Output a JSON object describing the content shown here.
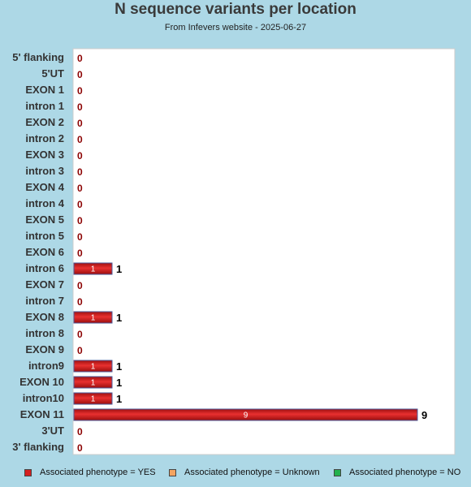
{
  "title": "N sequence variants per location",
  "subtitle": "From Infevers website - 2025-06-27",
  "chart_data": {
    "type": "bar",
    "orientation": "horizontal",
    "categories": [
      "5' flanking",
      "5'UT",
      "EXON 1",
      "intron 1",
      "EXON 2",
      "intron 2",
      "EXON 3",
      "intron 3",
      "EXON 4",
      "intron 4",
      "EXON 5",
      "intron 5",
      "EXON 6",
      "intron 6",
      "EXON 7",
      "intron 7",
      "EXON 8",
      "intron 8",
      "EXON 9",
      "intron9",
      "EXON 10",
      "intron10",
      "EXON 11",
      "3'UT",
      "3' flanking"
    ],
    "series": [
      {
        "name": "Associated phenotype = YES",
        "color": "#d42020",
        "values": [
          0,
          0,
          0,
          0,
          0,
          0,
          0,
          0,
          0,
          0,
          0,
          0,
          0,
          1,
          0,
          0,
          1,
          0,
          0,
          1,
          1,
          1,
          9,
          0,
          0
        ]
      },
      {
        "name": "Associated phenotype = Unknown",
        "color": "#f4a460",
        "values": [
          0,
          0,
          0,
          0,
          0,
          0,
          0,
          0,
          0,
          0,
          0,
          0,
          0,
          0,
          0,
          0,
          0,
          0,
          0,
          0,
          0,
          0,
          0,
          0,
          0
        ]
      },
      {
        "name": "Associated phenotype = NO",
        "color": "#22b14c",
        "values": [
          0,
          0,
          0,
          0,
          0,
          0,
          0,
          0,
          0,
          0,
          0,
          0,
          0,
          0,
          0,
          0,
          0,
          0,
          0,
          0,
          0,
          0,
          0,
          0,
          0
        ]
      }
    ],
    "totals": [
      0,
      0,
      0,
      0,
      0,
      0,
      0,
      0,
      0,
      0,
      0,
      0,
      0,
      1,
      0,
      0,
      1,
      0,
      0,
      1,
      1,
      1,
      9,
      0,
      0
    ],
    "xlim": [
      0,
      10
    ],
    "grid": false,
    "legend_position": "bottom"
  }
}
